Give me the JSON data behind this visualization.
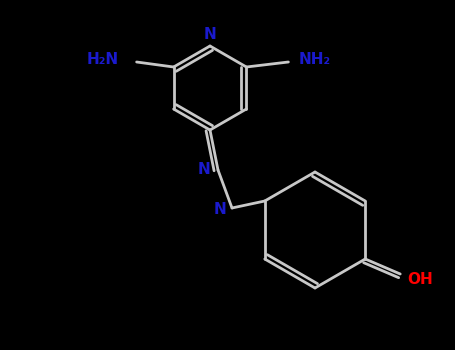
{
  "background_color": "#000000",
  "bond_color": "#c8c8c8",
  "heteroatom_color": "#1a1acd",
  "oxygen_color": "#FF0000",
  "bond_width": 2.0,
  "figsize": [
    4.55,
    3.5
  ],
  "dpi": 100,
  "xlim": [
    0,
    455
  ],
  "ylim": [
    0,
    350
  ]
}
